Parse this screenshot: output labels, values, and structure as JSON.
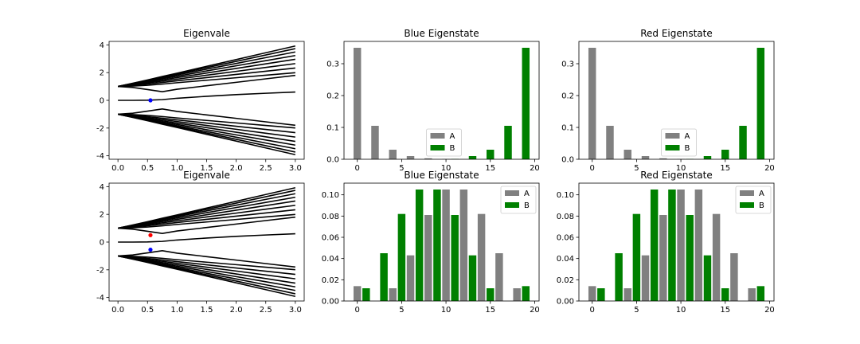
{
  "chart_data": [
    {
      "id": "p1",
      "type": "line",
      "title": "Eigenvale",
      "xlim": [
        -0.15,
        3.15
      ],
      "ylim": [
        -4.25,
        4.25
      ],
      "xticks": [
        "0.0",
        "0.5",
        "1.0",
        "1.5",
        "2.0",
        "2.5",
        "3.0"
      ],
      "yticks": [
        "-4",
        "-2",
        "0",
        "2",
        "4"
      ],
      "line_color": "#000000",
      "curves": {
        "x": [
          0,
          0.25,
          0.5,
          0.75,
          1.0,
          1.5,
          2.0,
          2.5,
          3.0
        ],
        "zero_branch": [
          0,
          0,
          0.01,
          0.05,
          0.15,
          0.29,
          0.41,
          0.51,
          0.6
        ],
        "upper": [
          [
            1,
            1.23,
            1.47,
            1.72,
            1.96,
            2.45,
            2.94,
            3.43,
            3.92
          ],
          [
            1,
            1.22,
            1.45,
            1.68,
            1.9,
            2.36,
            2.81,
            3.27,
            3.73
          ],
          [
            1,
            1.2,
            1.42,
            1.63,
            1.83,
            2.25,
            2.66,
            3.08,
            3.49
          ],
          [
            1,
            1.18,
            1.38,
            1.56,
            1.74,
            2.12,
            2.49,
            2.86,
            3.23
          ],
          [
            1,
            1.15,
            1.32,
            1.48,
            1.64,
            1.97,
            2.3,
            2.63,
            2.96
          ],
          [
            1,
            1.12,
            1.26,
            1.39,
            1.53,
            1.81,
            2.09,
            2.37,
            2.65
          ],
          [
            1,
            1.08,
            1.18,
            1.29,
            1.41,
            1.64,
            1.87,
            2.1,
            2.33
          ],
          [
            1,
            1.03,
            1.09,
            1.17,
            1.27,
            1.45,
            1.63,
            1.81,
            1.99
          ],
          [
            1,
            0.93,
            0.78,
            0.62,
            0.8,
            1.05,
            1.3,
            1.55,
            1.8
          ]
        ],
        "lower": [
          [
            -1,
            -1.23,
            -1.47,
            -1.72,
            -1.96,
            -2.45,
            -2.94,
            -3.43,
            -3.92
          ],
          [
            -1,
            -1.22,
            -1.45,
            -1.68,
            -1.9,
            -2.36,
            -2.81,
            -3.27,
            -3.73
          ],
          [
            -1,
            -1.2,
            -1.42,
            -1.63,
            -1.83,
            -2.25,
            -2.66,
            -3.08,
            -3.49
          ],
          [
            -1,
            -1.18,
            -1.38,
            -1.56,
            -1.74,
            -2.12,
            -2.49,
            -2.86,
            -3.23
          ],
          [
            -1,
            -1.15,
            -1.32,
            -1.48,
            -1.64,
            -1.97,
            -2.3,
            -2.63,
            -2.96
          ],
          [
            -1,
            -1.12,
            -1.26,
            -1.39,
            -1.53,
            -1.81,
            -2.09,
            -2.37,
            -2.65
          ],
          [
            -1,
            -1.08,
            -1.18,
            -1.29,
            -1.41,
            -1.64,
            -1.87,
            -2.1,
            -2.33
          ],
          [
            -1,
            -1.03,
            -1.09,
            -1.17,
            -1.27,
            -1.45,
            -1.63,
            -1.81,
            -1.99
          ],
          [
            -1,
            -0.93,
            -0.78,
            -0.62,
            -0.8,
            -1.05,
            -1.3,
            -1.55,
            -1.8
          ]
        ]
      },
      "markers": [
        {
          "x": 0.55,
          "y": 0.0,
          "color": "#0000ff"
        }
      ]
    },
    {
      "id": "p2",
      "type": "bar",
      "title": "Blue Eigenstate",
      "xlim": [
        -1.5,
        20.5
      ],
      "ylim": [
        0,
        0.37
      ],
      "xticks": [
        "0",
        "5",
        "10",
        "15",
        "20"
      ],
      "yticks": [
        "0.0",
        "0.1",
        "0.2",
        "0.3"
      ],
      "legend": "lower-center",
      "series": [
        {
          "name": "A",
          "color": "#808080",
          "x": [
            0,
            2,
            4,
            6,
            8,
            10,
            12,
            14,
            16,
            18
          ],
          "values": [
            0.35,
            0.105,
            0.03,
            0.01,
            0.003,
            0.001,
            0,
            0,
            0,
            0
          ]
        },
        {
          "name": "B",
          "color": "#008000",
          "x": [
            1,
            3,
            5,
            7,
            9,
            11,
            13,
            15,
            17,
            19
          ],
          "values": [
            0,
            0,
            0,
            0,
            0,
            0.001,
            0.01,
            0.03,
            0.105,
            0.35
          ]
        }
      ]
    },
    {
      "id": "p3",
      "type": "bar",
      "title": "Red Eigenstate",
      "xlim": [
        -1.5,
        20.5
      ],
      "ylim": [
        0,
        0.37
      ],
      "xticks": [
        "0",
        "5",
        "10",
        "15",
        "20"
      ],
      "yticks": [
        "0.0",
        "0.1",
        "0.2",
        "0.3"
      ],
      "legend": "lower-center",
      "series": [
        {
          "name": "A",
          "color": "#808080",
          "x": [
            0,
            2,
            4,
            6,
            8,
            10,
            12,
            14,
            16,
            18
          ],
          "values": [
            0.35,
            0.105,
            0.03,
            0.01,
            0.003,
            0.001,
            0,
            0,
            0,
            0
          ]
        },
        {
          "name": "B",
          "color": "#008000",
          "x": [
            1,
            3,
            5,
            7,
            9,
            11,
            13,
            15,
            17,
            19
          ],
          "values": [
            0,
            0,
            0,
            0,
            0,
            0.001,
            0.01,
            0.03,
            0.105,
            0.35
          ]
        }
      ]
    },
    {
      "id": "p4",
      "type": "line",
      "title": "Eigenvale",
      "xlim": [
        -0.15,
        3.15
      ],
      "ylim": [
        -4.25,
        4.25
      ],
      "xticks": [
        "0.0",
        "0.5",
        "1.0",
        "1.5",
        "2.0",
        "2.5",
        "3.0"
      ],
      "yticks": [
        "-4",
        "-2",
        "0",
        "2",
        "4"
      ],
      "line_color": "#000000",
      "curves": {
        "x": [
          0,
          0.25,
          0.5,
          0.75,
          1.0,
          1.5,
          2.0,
          2.5,
          3.0
        ],
        "zero_branch": [
          0,
          0,
          0.01,
          0.05,
          0.15,
          0.29,
          0.41,
          0.51,
          0.6
        ],
        "upper": [
          [
            1,
            1.23,
            1.47,
            1.72,
            1.96,
            2.45,
            2.94,
            3.43,
            3.92
          ],
          [
            1,
            1.22,
            1.45,
            1.68,
            1.9,
            2.36,
            2.81,
            3.27,
            3.73
          ],
          [
            1,
            1.2,
            1.42,
            1.63,
            1.83,
            2.25,
            2.66,
            3.08,
            3.49
          ],
          [
            1,
            1.18,
            1.38,
            1.56,
            1.74,
            2.12,
            2.49,
            2.86,
            3.23
          ],
          [
            1,
            1.15,
            1.32,
            1.48,
            1.64,
            1.97,
            2.3,
            2.63,
            2.96
          ],
          [
            1,
            1.12,
            1.26,
            1.39,
            1.53,
            1.81,
            2.09,
            2.37,
            2.65
          ],
          [
            1,
            1.08,
            1.18,
            1.29,
            1.41,
            1.64,
            1.87,
            2.1,
            2.33
          ],
          [
            1,
            1.03,
            1.09,
            1.17,
            1.27,
            1.45,
            1.63,
            1.81,
            1.99
          ],
          [
            1,
            0.93,
            0.78,
            0.62,
            0.8,
            1.05,
            1.3,
            1.55,
            1.8
          ]
        ],
        "lower": [
          [
            -1,
            -1.23,
            -1.47,
            -1.72,
            -1.96,
            -2.45,
            -2.94,
            -3.43,
            -3.92
          ],
          [
            -1,
            -1.22,
            -1.45,
            -1.68,
            -1.9,
            -2.36,
            -2.81,
            -3.27,
            -3.73
          ],
          [
            -1,
            -1.2,
            -1.42,
            -1.63,
            -1.83,
            -2.25,
            -2.66,
            -3.08,
            -3.49
          ],
          [
            -1,
            -1.18,
            -1.38,
            -1.56,
            -1.74,
            -2.12,
            -2.49,
            -2.86,
            -3.23
          ],
          [
            -1,
            -1.15,
            -1.32,
            -1.48,
            -1.64,
            -1.97,
            -2.3,
            -2.63,
            -2.96
          ],
          [
            -1,
            -1.12,
            -1.26,
            -1.39,
            -1.53,
            -1.81,
            -2.09,
            -2.37,
            -2.65
          ],
          [
            -1,
            -1.08,
            -1.18,
            -1.29,
            -1.41,
            -1.64,
            -1.87,
            -2.1,
            -2.33
          ],
          [
            -1,
            -1.03,
            -1.09,
            -1.17,
            -1.27,
            -1.45,
            -1.63,
            -1.81,
            -1.99
          ],
          [
            -1,
            -0.93,
            -0.78,
            -0.62,
            -0.8,
            -1.05,
            -1.3,
            -1.55,
            -1.8
          ]
        ]
      },
      "markers": [
        {
          "x": 0.55,
          "y": 0.5,
          "color": "#ff0000"
        },
        {
          "x": 0.55,
          "y": -0.55,
          "color": "#0000ff"
        }
      ]
    },
    {
      "id": "p5",
      "type": "bar",
      "title": "Blue Eigenstate",
      "xlim": [
        -1.5,
        20.5
      ],
      "ylim": [
        0,
        0.111
      ],
      "xticks": [
        "0",
        "5",
        "10",
        "15",
        "20"
      ],
      "yticks": [
        "0.00",
        "0.02",
        "0.04",
        "0.06",
        "0.08",
        "0.10"
      ],
      "legend": "upper-right",
      "series": [
        {
          "name": "A",
          "color": "#808080",
          "x": [
            0,
            2,
            4,
            6,
            8,
            10,
            12,
            14,
            16,
            18
          ],
          "values": [
            0.014,
            0,
            0.012,
            0.043,
            0.081,
            0.105,
            0.105,
            0.082,
            0.045,
            0.012
          ]
        },
        {
          "name": "B",
          "color": "#008000",
          "x": [
            1,
            3,
            5,
            7,
            9,
            11,
            13,
            15,
            17,
            19
          ],
          "values": [
            0.012,
            0.045,
            0.082,
            0.105,
            0.105,
            0.081,
            0.043,
            0.012,
            0,
            0.014
          ]
        }
      ]
    },
    {
      "id": "p6",
      "type": "bar",
      "title": "Red Eigenstate",
      "xlim": [
        -1.5,
        20.5
      ],
      "ylim": [
        0,
        0.111
      ],
      "xticks": [
        "0",
        "5",
        "10",
        "15",
        "20"
      ],
      "yticks": [
        "0.00",
        "0.02",
        "0.04",
        "0.06",
        "0.08",
        "0.10"
      ],
      "legend": "upper-right",
      "series": [
        {
          "name": "A",
          "color": "#808080",
          "x": [
            0,
            2,
            4,
            6,
            8,
            10,
            12,
            14,
            16,
            18
          ],
          "values": [
            0.014,
            0,
            0.012,
            0.043,
            0.081,
            0.105,
            0.105,
            0.082,
            0.045,
            0.012
          ]
        },
        {
          "name": "B",
          "color": "#008000",
          "x": [
            1,
            3,
            5,
            7,
            9,
            11,
            13,
            15,
            17,
            19
          ],
          "values": [
            0.012,
            0.045,
            0.082,
            0.105,
            0.105,
            0.081,
            0.043,
            0.012,
            0,
            0.014
          ]
        }
      ]
    }
  ]
}
